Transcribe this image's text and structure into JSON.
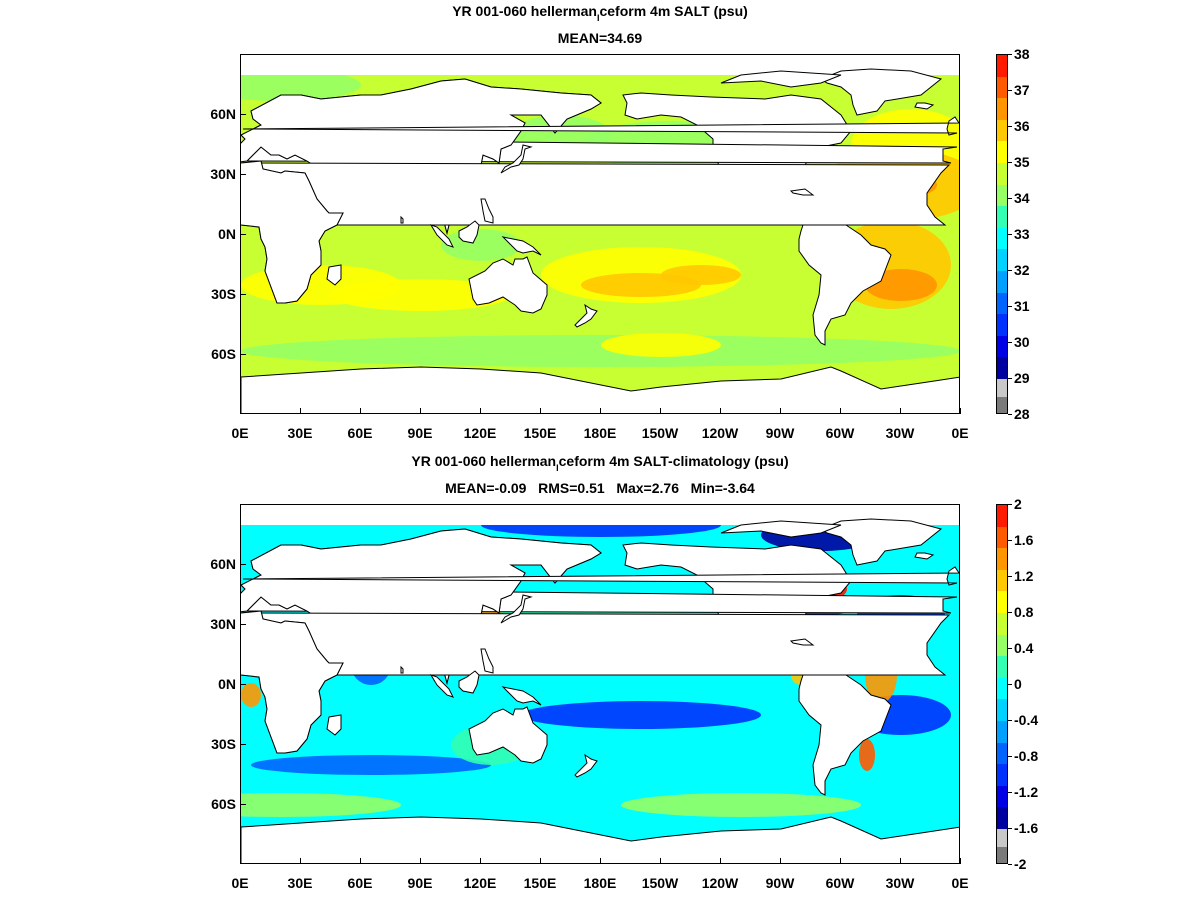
{
  "panels": [
    {
      "id": "top",
      "title_main": "YR 001-060 hellerman",
      "title_sub": "I",
      "title_rest": "ceform 4m SALT (psu)",
      "stats": "MEAN=34.69",
      "colorbar_labels": [
        "38",
        "37",
        "36",
        "35",
        "34",
        "33",
        "32",
        "31",
        "30",
        "29",
        "28"
      ],
      "colorbar_colors": [
        "#ff1a00",
        "#ff5a00",
        "#ff9600",
        "#ffc800",
        "#ffff00",
        "#c8ff32",
        "#96ff64",
        "#32ffb4",
        "#00ffff",
        "#00d2ff",
        "#00a0ff",
        "#0064ff",
        "#0032ff",
        "#0000e6",
        "#0000a0",
        "#c8c8c8",
        "#7a7a7a"
      ],
      "base_color": "#c8ff32"
    },
    {
      "id": "bottom",
      "title_main": "YR 001-060 hellerman",
      "title_sub": "I",
      "title_rest": "ceform 4m SALT-climatology (psu)",
      "stats": "MEAN=-0.09   RMS=0.51   Max=2.76   Min=-3.64",
      "colorbar_labels": [
        "2",
        "1.6",
        "1.2",
        "0.8",
        "0.4",
        "0",
        "-0.4",
        "-0.8",
        "-1.2",
        "-1.6",
        "-2"
      ],
      "colorbar_colors": [
        "#ff1a00",
        "#ff5a00",
        "#ff9600",
        "#ffc800",
        "#ffff00",
        "#c8ff32",
        "#96ff64",
        "#32ffb4",
        "#00ffff",
        "#00d2ff",
        "#00a0ff",
        "#0064ff",
        "#0032ff",
        "#0000e6",
        "#0000a0",
        "#c8c8c8",
        "#7a7a7a"
      ],
      "base_color": "#00ffff"
    }
  ],
  "y_axis_labels": [
    "60N",
    "30N",
    "0N",
    "30S",
    "60S"
  ],
  "x_axis_labels": [
    "0E",
    "30E",
    "60E",
    "90E",
    "120E",
    "150E",
    "180E",
    "150W",
    "120W",
    "90W",
    "60W",
    "30W",
    "0E"
  ]
}
